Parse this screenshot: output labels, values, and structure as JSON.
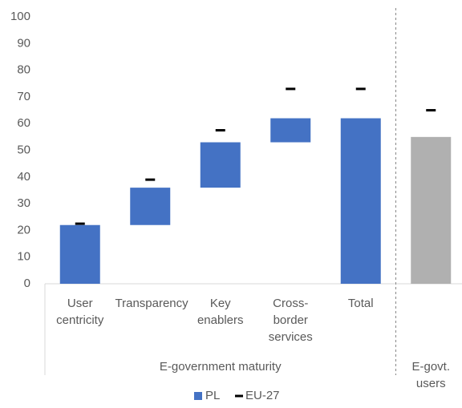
{
  "chart_data": {
    "type": "waterfall",
    "groups": [
      {
        "name": "E-government maturity",
        "categories": [
          "User centricity",
          "Transparency",
          "Key enablers",
          "Cross-border services",
          "Total"
        ]
      },
      {
        "name": "E-govt. users",
        "categories": [
          null
        ]
      }
    ],
    "series": [
      {
        "name": "PL",
        "color": "#4472c4",
        "colors": [
          "#4472c4",
          "#4472c4",
          "#4472c4",
          "#4472c4",
          "#4472c4",
          "#b0b0b0"
        ],
        "measure": [
          "relative",
          "relative",
          "relative",
          "relative",
          "absolute",
          "absolute"
        ],
        "values": [
          22,
          14,
          17,
          9,
          62,
          55
        ]
      },
      {
        "name": "EU-27",
        "color": "#000000",
        "marker": "dash",
        "values": [
          22.5,
          39,
          57.5,
          73,
          73,
          65
        ]
      }
    ],
    "ylim": [
      0,
      100
    ],
    "yticks": [
      0,
      10,
      20,
      30,
      40,
      50,
      60,
      70,
      80,
      90,
      100
    ],
    "grid": false,
    "legend": "bottom"
  }
}
